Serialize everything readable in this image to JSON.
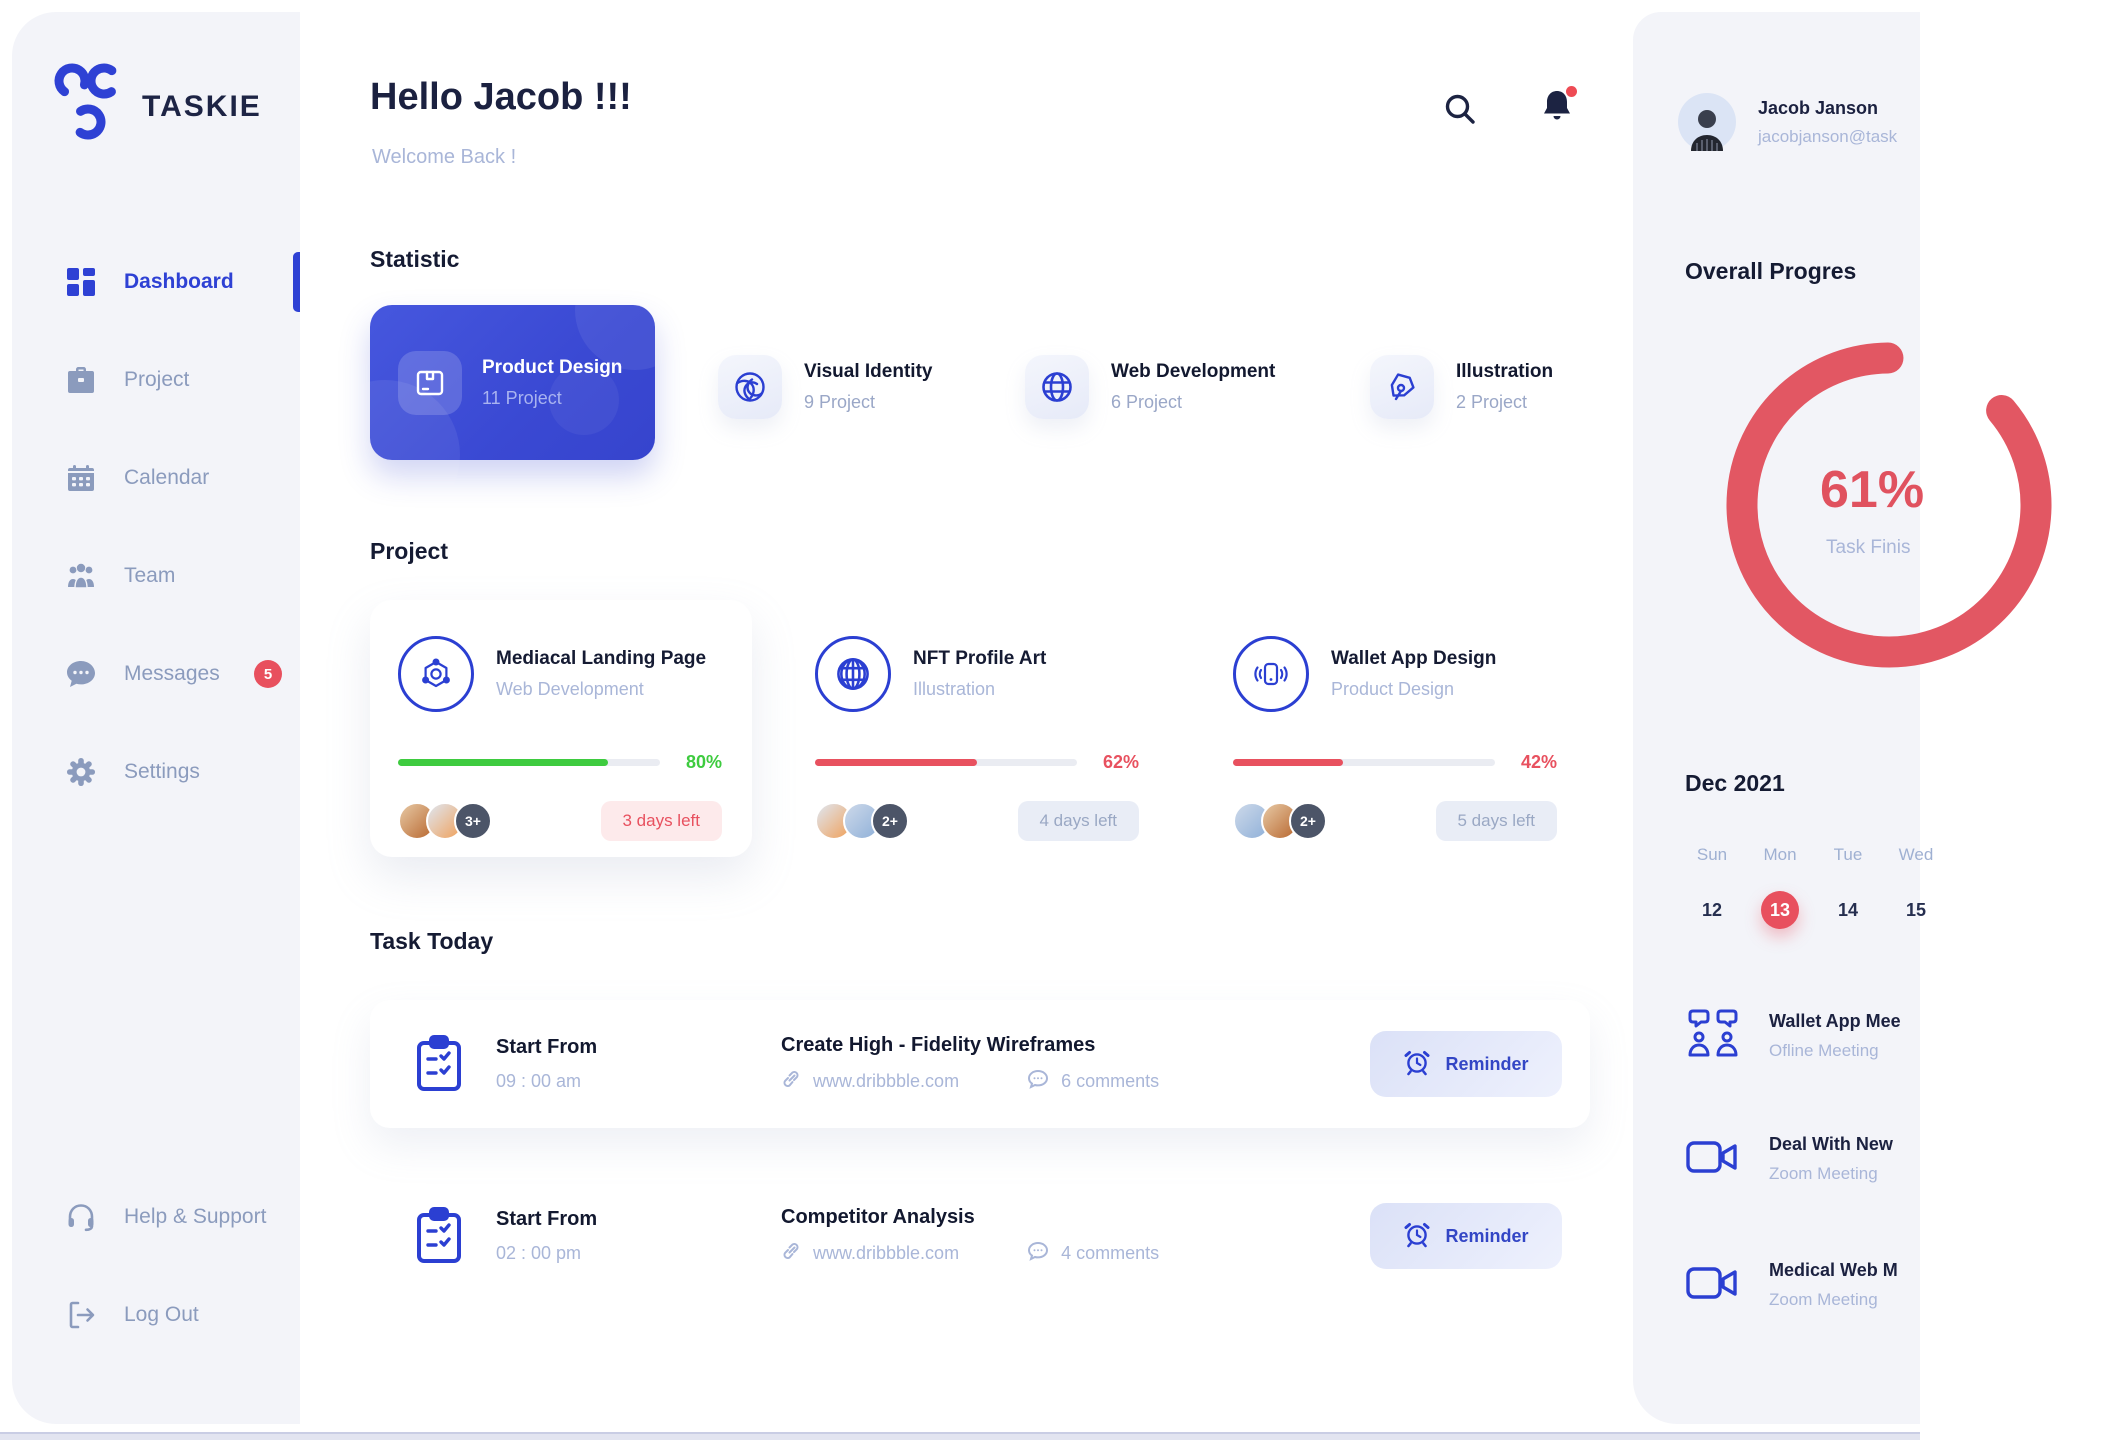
{
  "brand": "TASKIE",
  "sidebar": {
    "items": [
      {
        "label": "Dashboard",
        "icon": "dashboard-grid-icon",
        "active": true
      },
      {
        "label": "Project",
        "icon": "briefcase-icon"
      },
      {
        "label": "Calendar",
        "icon": "calendar-icon"
      },
      {
        "label": "Team",
        "icon": "team-icon"
      },
      {
        "label": "Messages",
        "icon": "chat-bubble-icon",
        "badge": "5"
      },
      {
        "label": "Settings",
        "icon": "gear-icon"
      }
    ],
    "footer_items": [
      {
        "label": "Help & Support",
        "icon": "headset-icon"
      },
      {
        "label": "Log Out",
        "icon": "logout-icon"
      }
    ]
  },
  "header": {
    "greeting": "Hello Jacob !!!",
    "welcome": "Welcome Back !",
    "icons": [
      "search-icon",
      "bell-icon"
    ]
  },
  "statistics": {
    "title": "Statistic",
    "cards": [
      {
        "title": "Product Design",
        "count": "11 Project",
        "icon": "package-box-icon",
        "active": true
      },
      {
        "title": "Visual Identity",
        "count": "9 Project",
        "icon": "swirl-icon"
      },
      {
        "title": "Web Development",
        "count": "6 Project",
        "icon": "globe-icon"
      },
      {
        "title": "Illustration",
        "count": "2 Project",
        "icon": "pen-nib-icon"
      }
    ]
  },
  "projects": {
    "title": "Project",
    "cards": [
      {
        "title": "Mediacal Landing Page",
        "category": "Web Development",
        "percent": 80,
        "percent_label": "80%",
        "days_left": "3 days left",
        "extra_members": "3+",
        "icon": "molecule-icon",
        "bar_color": "#3ecb3f"
      },
      {
        "title": "NFT Profile Art",
        "category": "Illustration",
        "percent": 62,
        "percent_label": "62%",
        "days_left": "4 days left",
        "extra_members": "2+",
        "icon": "globe-icon",
        "bar_color": "#e8515f"
      },
      {
        "title": "Wallet App Design",
        "category": "Product Design",
        "percent": 42,
        "percent_label": "42%",
        "days_left": "5 days left",
        "extra_members": "2+",
        "icon": "phone-waves-icon",
        "bar_color": "#e8515f"
      }
    ]
  },
  "tasks": {
    "title": "Task Today",
    "items": [
      {
        "start_label": "Start From",
        "time": "09 : 00 am",
        "name": "Create High - Fidelity Wireframes",
        "link": "www.dribbble.com",
        "comments": "6 comments",
        "reminder_label": "Reminder"
      },
      {
        "start_label": "Start From",
        "time": "02 : 00 pm",
        "name": "Competitor Analysis",
        "link": "www.dribbble.com",
        "comments": "4 comments",
        "reminder_label": "Reminder"
      }
    ]
  },
  "right_panel": {
    "profile": {
      "name": "Jacob Janson",
      "email": "jacobjanson@task"
    },
    "overall": {
      "title": "Overall Progres",
      "percent": "61%",
      "caption": "Task Finis"
    },
    "calendar": {
      "month": "Dec 2021",
      "weekdays": [
        "Sun",
        "Mon",
        "Tue",
        "Wed"
      ],
      "dates": [
        "12",
        "13",
        "14",
        "15"
      ],
      "selected_date": "13"
    },
    "meetings": [
      {
        "title": "Wallet App Mee",
        "type": "Ofline Meeting",
        "icon": "people-meeting-icon"
      },
      {
        "title": "Deal With New",
        "type": "Zoom Meeting",
        "icon": "video-camera-icon"
      },
      {
        "title": "Medical Web M",
        "type": "Zoom Meeting",
        "icon": "video-camera-icon"
      }
    ]
  },
  "colors": {
    "primary_blue": "#2e41d4",
    "navy_text": "#1b2140",
    "muted_text": "#a9b6d8",
    "sidebar_bg": "#f3f4f9",
    "red": "#e8505e",
    "green": "#3ecb3f",
    "ring_red": "#e0525f"
  }
}
